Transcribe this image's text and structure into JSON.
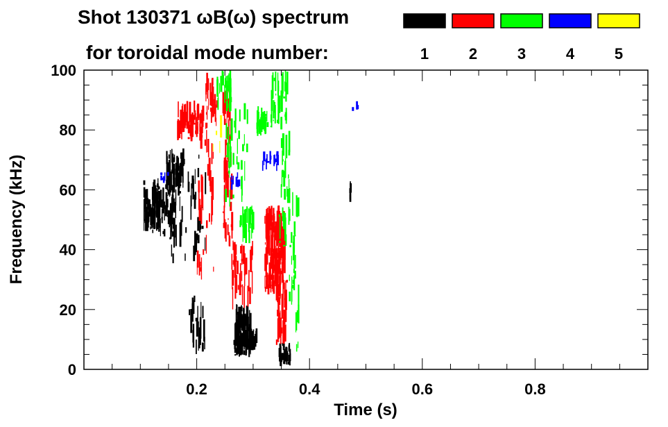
{
  "chart_data": {
    "type": "spectrogram",
    "title_line1": "Shot 130371 ωB(ω) spectrum",
    "title_line2": "for toroidal mode number:",
    "xlabel": "Time (s)",
    "ylabel": "Frequency (kHz)",
    "xlim": [
      0.0,
      1.0
    ],
    "ylim": [
      0,
      100
    ],
    "x_ticks": [
      {
        "value": 0.2,
        "label": "0.2"
      },
      {
        "value": 0.4,
        "label": "0.4"
      },
      {
        "value": 0.6,
        "label": "0.6"
      },
      {
        "value": 0.8,
        "label": "0.8"
      }
    ],
    "y_ticks": [
      {
        "value": 0,
        "label": "0"
      },
      {
        "value": 20,
        "label": "20"
      },
      {
        "value": 40,
        "label": "40"
      },
      {
        "value": 60,
        "label": "60"
      },
      {
        "value": 80,
        "label": "80"
      },
      {
        "value": 100,
        "label": "100"
      }
    ],
    "legend": [
      {
        "mode": "1",
        "color": "#000000"
      },
      {
        "mode": "2",
        "color": "#ff0000"
      },
      {
        "mode": "3",
        "color": "#00ff00"
      },
      {
        "mode": "4",
        "color": "#0000ff"
      },
      {
        "mode": "5",
        "color": "#ffff00"
      }
    ],
    "regions": [
      {
        "mode": 1,
        "t0": 0.105,
        "t1": 0.135,
        "f0": 46,
        "f1": 64,
        "density": 70
      },
      {
        "mode": 1,
        "t0": 0.12,
        "t1": 0.16,
        "f0": 44,
        "f1": 62,
        "density": 50
      },
      {
        "mode": 1,
        "t0": 0.145,
        "t1": 0.175,
        "f0": 58,
        "f1": 74,
        "density": 60
      },
      {
        "mode": 1,
        "t0": 0.15,
        "t1": 0.215,
        "f0": 30,
        "f1": 72,
        "density": 45
      },
      {
        "mode": 1,
        "t0": 0.185,
        "t1": 0.215,
        "f0": 5,
        "f1": 30,
        "density": 22
      },
      {
        "mode": 1,
        "t0": 0.265,
        "t1": 0.295,
        "f0": 4,
        "f1": 22,
        "density": 90
      },
      {
        "mode": 1,
        "t0": 0.29,
        "t1": 0.305,
        "f0": 6,
        "f1": 14,
        "density": 35
      },
      {
        "mode": 1,
        "t0": 0.345,
        "t1": 0.365,
        "f0": 1,
        "f1": 9,
        "density": 40
      },
      {
        "mode": 1,
        "t0": 0.469,
        "t1": 0.472,
        "f0": 54,
        "f1": 63,
        "density": 5
      },
      {
        "mode": 2,
        "t0": 0.165,
        "t1": 0.21,
        "f0": 76,
        "f1": 90,
        "density": 55
      },
      {
        "mode": 2,
        "t0": 0.2,
        "t1": 0.23,
        "f0": 30,
        "f1": 95,
        "density": 45
      },
      {
        "mode": 2,
        "t0": 0.215,
        "t1": 0.235,
        "f0": 80,
        "f1": 100,
        "density": 25
      },
      {
        "mode": 2,
        "t0": 0.245,
        "t1": 0.262,
        "f0": 40,
        "f1": 95,
        "density": 55
      },
      {
        "mode": 2,
        "t0": 0.26,
        "t1": 0.3,
        "f0": 20,
        "f1": 45,
        "density": 40
      },
      {
        "mode": 2,
        "t0": 0.32,
        "t1": 0.355,
        "f0": 25,
        "f1": 55,
        "density": 180
      },
      {
        "mode": 2,
        "t0": 0.34,
        "t1": 0.36,
        "f0": 8,
        "f1": 30,
        "density": 40
      },
      {
        "mode": 3,
        "t0": 0.235,
        "t1": 0.26,
        "f0": 85,
        "f1": 100,
        "density": 35
      },
      {
        "mode": 3,
        "t0": 0.25,
        "t1": 0.29,
        "f0": 50,
        "f1": 90,
        "density": 35
      },
      {
        "mode": 3,
        "t0": 0.275,
        "t1": 0.3,
        "f0": 42,
        "f1": 55,
        "density": 25
      },
      {
        "mode": 3,
        "t0": 0.305,
        "t1": 0.325,
        "f0": 78,
        "f1": 88,
        "density": 30
      },
      {
        "mode": 3,
        "t0": 0.33,
        "t1": 0.36,
        "f0": 80,
        "f1": 100,
        "density": 35
      },
      {
        "mode": 3,
        "t0": 0.345,
        "t1": 0.365,
        "f0": 40,
        "f1": 80,
        "density": 30
      },
      {
        "mode": 3,
        "t0": 0.36,
        "t1": 0.38,
        "f0": 5,
        "f1": 60,
        "density": 30
      },
      {
        "mode": 4,
        "t0": 0.315,
        "t1": 0.345,
        "f0": 66,
        "f1": 73,
        "density": 18
      },
      {
        "mode": 4,
        "t0": 0.26,
        "t1": 0.275,
        "f0": 60,
        "f1": 66,
        "density": 8
      },
      {
        "mode": 4,
        "t0": 0.135,
        "t1": 0.15,
        "f0": 62,
        "f1": 66,
        "density": 6
      },
      {
        "mode": 4,
        "t0": 0.475,
        "t1": 0.485,
        "f0": 86,
        "f1": 90,
        "density": 3
      },
      {
        "mode": 5,
        "t0": 0.22,
        "t1": 0.26,
        "f0": 70,
        "f1": 85,
        "density": 4
      }
    ]
  }
}
